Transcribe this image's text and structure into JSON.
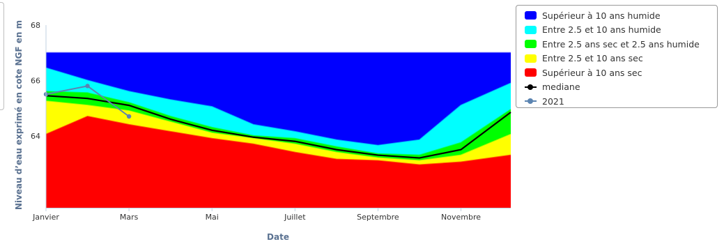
{
  "chart_data": {
    "type": "area",
    "title": "",
    "xlabel": "Date",
    "ylabel": "Niveau d’eau exprimé en cote NGF en m",
    "ylim": [
      61.4,
      68
    ],
    "xlim": [
      1,
      12.2
    ],
    "yticks": [
      64,
      66,
      68
    ],
    "xticks": [
      {
        "label": "Janvier",
        "x": 1
      },
      {
        "label": "Mars",
        "x": 3
      },
      {
        "label": "Mai",
        "x": 5
      },
      {
        "label": "Juillet",
        "x": 7
      },
      {
        "label": "Septembre",
        "x": 9
      },
      {
        "label": "Novembre",
        "x": 11
      }
    ],
    "x": [
      1,
      2,
      3,
      4,
      5,
      6,
      7,
      8,
      9,
      10,
      11,
      12.2
    ],
    "stacked_series": [
      {
        "name": "Supérieur à 10 ans sec",
        "color": "#ff0000",
        "values": [
          64.05,
          64.7,
          64.4,
          64.15,
          63.9,
          63.7,
          63.4,
          63.15,
          63.1,
          62.95,
          63.05,
          63.3
        ]
      },
      {
        "name": "Entre 2.5 et 10 ans sec",
        "color": "#ffff00",
        "values": [
          65.25,
          65.1,
          64.9,
          64.5,
          64.1,
          63.9,
          63.7,
          63.4,
          63.2,
          63.1,
          63.3,
          64.05
        ]
      },
      {
        "name": "Entre 2.5 ans sec et 2.5 ans humide",
        "color": "#00ff00",
        "values": [
          65.6,
          65.55,
          65.2,
          64.7,
          64.3,
          64.0,
          63.9,
          63.6,
          63.35,
          63.3,
          63.75,
          64.95
        ]
      },
      {
        "name": "Entre 2.5 et 10 ans humide",
        "color": "#00ffff",
        "values": [
          66.45,
          66.0,
          65.6,
          65.3,
          65.05,
          64.4,
          64.15,
          63.85,
          63.65,
          63.85,
          65.1,
          65.9
        ]
      },
      {
        "name": "Supérieur à 10 ans humide",
        "color": "#0000ff",
        "values": [
          67.0,
          67.0,
          67.0,
          67.0,
          67.0,
          67.0,
          67.0,
          67.0,
          67.0,
          67.0,
          67.0,
          67.0
        ]
      }
    ],
    "series": [
      {
        "name": "mediane",
        "color": "#000000",
        "x": [
          1,
          2,
          3,
          4,
          5,
          6,
          7,
          8,
          9,
          10,
          11,
          12.2
        ],
        "values": [
          65.45,
          65.35,
          65.1,
          64.6,
          64.2,
          63.95,
          63.8,
          63.5,
          63.3,
          63.2,
          63.5,
          64.85
        ]
      },
      {
        "name": "2021",
        "color": "#5b84b1",
        "x": [
          1,
          2,
          3
        ],
        "values": [
          65.5,
          65.8,
          64.7
        ]
      }
    ],
    "legend_position": "top-right",
    "grid": false
  },
  "legend": {
    "items": [
      {
        "label": "Supérieur à 10 ans humide",
        "color": "#0000ff",
        "kind": "area"
      },
      {
        "label": "Entre 2.5 et 10 ans humide",
        "color": "#00ffff",
        "kind": "area"
      },
      {
        "label": "Entre 2.5 ans sec et 2.5 ans humide",
        "color": "#00ff00",
        "kind": "area"
      },
      {
        "label": "Entre 2.5 et 10 ans sec",
        "color": "#ffff00",
        "kind": "area"
      },
      {
        "label": "Supérieur à 10 ans sec",
        "color": "#ff0000",
        "kind": "area"
      },
      {
        "label": "mediane",
        "color": "#000000",
        "kind": "line"
      },
      {
        "label": "2021",
        "color": "#5b84b1",
        "kind": "line"
      }
    ]
  }
}
